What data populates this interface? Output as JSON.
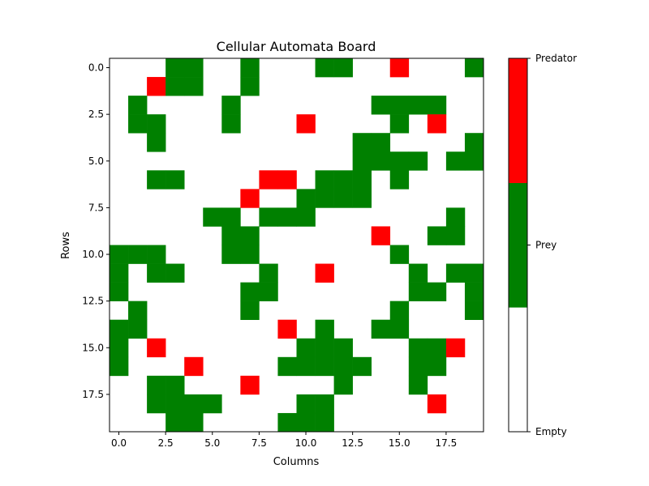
{
  "chart_data": {
    "type": "heatmap",
    "title": "Cellular Automata Board",
    "xlabel": "Columns",
    "ylabel": "Rows",
    "xlim": [
      -0.5,
      19.5
    ],
    "ylim": [
      19.5,
      -0.5
    ],
    "grid": false,
    "x_ticks": [
      "0.0",
      "2.5",
      "5.0",
      "7.5",
      "10.0",
      "12.5",
      "15.0",
      "17.5"
    ],
    "y_ticks": [
      "0.0",
      "2.5",
      "5.0",
      "7.5",
      "10.0",
      "12.5",
      "15.0",
      "17.5"
    ],
    "colorbar": {
      "labels": [
        "Empty",
        "Prey",
        "Predator"
      ],
      "colors": [
        "#ffffff",
        "#008000",
        "#ff0000"
      ]
    },
    "legend": {
      "0": "Empty",
      "1": "Prey",
      "2": "Predator"
    },
    "grid_values": [
      [
        0,
        0,
        0,
        1,
        1,
        0,
        0,
        1,
        0,
        0,
        0,
        1,
        1,
        0,
        0,
        2,
        0,
        0,
        0,
        1
      ],
      [
        0,
        0,
        2,
        1,
        1,
        0,
        0,
        1,
        0,
        0,
        0,
        0,
        0,
        0,
        0,
        0,
        0,
        0,
        0,
        0
      ],
      [
        0,
        1,
        0,
        0,
        0,
        0,
        1,
        0,
        0,
        0,
        0,
        0,
        0,
        0,
        1,
        1,
        1,
        1,
        0,
        0
      ],
      [
        0,
        1,
        1,
        0,
        0,
        0,
        1,
        0,
        0,
        0,
        2,
        0,
        0,
        0,
        0,
        1,
        0,
        2,
        0,
        0
      ],
      [
        0,
        0,
        1,
        0,
        0,
        0,
        0,
        0,
        0,
        0,
        0,
        0,
        0,
        1,
        1,
        0,
        0,
        0,
        0,
        1
      ],
      [
        0,
        0,
        0,
        0,
        0,
        0,
        0,
        0,
        0,
        0,
        0,
        0,
        0,
        1,
        1,
        1,
        1,
        0,
        1,
        1
      ],
      [
        0,
        0,
        1,
        1,
        0,
        0,
        0,
        0,
        2,
        2,
        0,
        1,
        1,
        1,
        0,
        1,
        0,
        0,
        0,
        0
      ],
      [
        0,
        0,
        0,
        0,
        0,
        0,
        0,
        2,
        0,
        0,
        1,
        1,
        1,
        1,
        0,
        0,
        0,
        0,
        0,
        0
      ],
      [
        0,
        0,
        0,
        0,
        0,
        1,
        1,
        0,
        1,
        1,
        1,
        0,
        0,
        0,
        0,
        0,
        0,
        0,
        1,
        0
      ],
      [
        0,
        0,
        0,
        0,
        0,
        0,
        1,
        1,
        0,
        0,
        0,
        0,
        0,
        0,
        2,
        0,
        0,
        1,
        1,
        0
      ],
      [
        1,
        1,
        1,
        0,
        0,
        0,
        1,
        1,
        0,
        0,
        0,
        0,
        0,
        0,
        0,
        1,
        0,
        0,
        0,
        0
      ],
      [
        1,
        0,
        1,
        1,
        0,
        0,
        0,
        0,
        1,
        0,
        0,
        2,
        0,
        0,
        0,
        0,
        1,
        0,
        1,
        1
      ],
      [
        1,
        0,
        0,
        0,
        0,
        0,
        0,
        1,
        1,
        0,
        0,
        0,
        0,
        0,
        0,
        0,
        1,
        1,
        0,
        1
      ],
      [
        0,
        1,
        0,
        0,
        0,
        0,
        0,
        1,
        0,
        0,
        0,
        0,
        0,
        0,
        0,
        1,
        0,
        0,
        0,
        1
      ],
      [
        1,
        1,
        0,
        0,
        0,
        0,
        0,
        0,
        0,
        2,
        0,
        1,
        0,
        0,
        1,
        1,
        0,
        0,
        0,
        0
      ],
      [
        1,
        0,
        2,
        0,
        0,
        0,
        0,
        0,
        0,
        0,
        1,
        1,
        1,
        0,
        0,
        0,
        1,
        1,
        2,
        0
      ],
      [
        1,
        0,
        0,
        0,
        2,
        0,
        0,
        0,
        0,
        1,
        1,
        1,
        1,
        1,
        0,
        0,
        1,
        1,
        0,
        0
      ],
      [
        0,
        0,
        1,
        1,
        0,
        0,
        0,
        2,
        0,
        0,
        0,
        0,
        1,
        0,
        0,
        0,
        1,
        0,
        0,
        0
      ],
      [
        0,
        0,
        1,
        1,
        1,
        1,
        0,
        0,
        0,
        0,
        1,
        1,
        0,
        0,
        0,
        0,
        0,
        2,
        0,
        0
      ],
      [
        0,
        0,
        0,
        1,
        1,
        0,
        0,
        0,
        0,
        1,
        1,
        1,
        0,
        0,
        0,
        0,
        0,
        0,
        0,
        0
      ]
    ]
  }
}
